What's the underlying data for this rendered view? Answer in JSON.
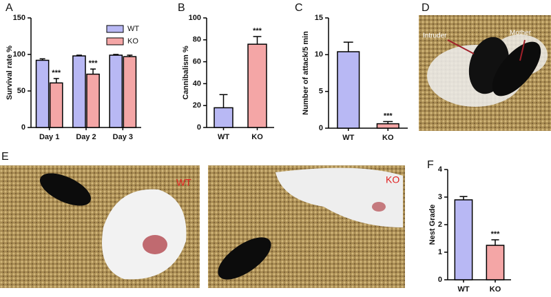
{
  "chart_data": [
    {
      "type": "bar",
      "label": "A",
      "y_label": "Survival rate %",
      "categories": [
        "Day 1",
        "Day 2",
        "Day 3"
      ],
      "series": [
        {
          "name": "WT",
          "color": "#b8b8f4",
          "values": [
            92,
            98,
            99
          ],
          "errors": [
            2,
            1,
            1
          ],
          "annotations": [
            null,
            null,
            null
          ]
        },
        {
          "name": "KO",
          "color": "#f4a6a6",
          "values": [
            61,
            73,
            97
          ],
          "errors": [
            6,
            7,
            2
          ],
          "annotations": [
            "***",
            "***",
            null
          ]
        }
      ],
      "ylim": [
        0,
        150
      ],
      "yticks": [
        0,
        50,
        100,
        150
      ],
      "legend": "top-right"
    },
    {
      "type": "bar",
      "label": "B",
      "y_label": "Cannibalism %",
      "categories": [
        "WT",
        "KO"
      ],
      "values": [
        18,
        76
      ],
      "errors": [
        12,
        7
      ],
      "colors": [
        "#b8b8f4",
        "#f4a6a6"
      ],
      "annotations": [
        null,
        "***"
      ],
      "ylim": [
        0,
        100
      ],
      "yticks": [
        0,
        20,
        40,
        60,
        80,
        100
      ]
    },
    {
      "type": "bar",
      "label": "C",
      "y_label": "Number of attack/5 min",
      "categories": [
        "WT",
        "KO"
      ],
      "values": [
        10.4,
        0.6
      ],
      "errors": [
        1.3,
        0.3
      ],
      "colors": [
        "#b8b8f4",
        "#f4a6a6"
      ],
      "annotations": [
        null,
        "***"
      ],
      "ylim": [
        0,
        15
      ],
      "yticks": [
        0,
        5,
        10,
        15
      ]
    },
    {
      "type": "bar",
      "label": "F",
      "y_label": "Nest Grade",
      "categories": [
        "WT",
        "KO"
      ],
      "values": [
        2.9,
        1.25
      ],
      "errors": [
        0.12,
        0.2
      ],
      "colors": [
        "#b8b8f4",
        "#f4a6a6"
      ],
      "annotations": [
        null,
        "***"
      ],
      "ylim": [
        0,
        4
      ],
      "yticks": [
        0,
        1,
        2,
        3,
        4
      ]
    }
  ],
  "photo_panels": [
    {
      "label": "D",
      "captions": [
        "Intruder",
        "Mother"
      ]
    },
    {
      "label": "E",
      "captions": [
        "WT",
        "KO"
      ]
    }
  ]
}
